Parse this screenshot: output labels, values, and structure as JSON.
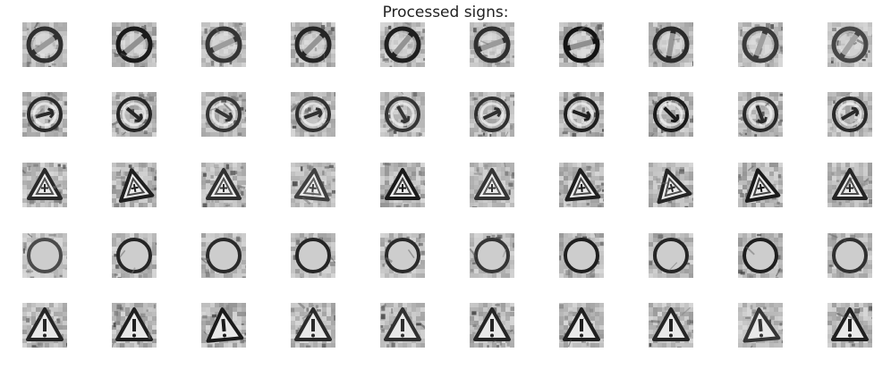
{
  "figure": {
    "title": "Processed signs:"
  },
  "grid": {
    "rows": [
      {
        "name": "circle-slash",
        "symbol": "circle-slash",
        "variants": [
          {
            "angle": 55,
            "contrast": 0.75
          },
          {
            "angle": 50,
            "contrast": 0.95
          },
          {
            "angle": 65,
            "contrast": 0.7
          },
          {
            "angle": 45,
            "contrast": 0.85
          },
          {
            "angle": 40,
            "contrast": 0.9
          },
          {
            "angle": 70,
            "contrast": 0.75
          },
          {
            "angle": 75,
            "contrast": 1.0
          },
          {
            "angle": 10,
            "contrast": 0.8
          },
          {
            "angle": 20,
            "contrast": 0.65
          },
          {
            "angle": 35,
            "contrast": 0.55
          }
        ]
      },
      {
        "name": "circle-arrow",
        "symbol": "circle-arrow",
        "variants": [
          {
            "angle": -15,
            "contrast": 0.8
          },
          {
            "angle": 40,
            "contrast": 0.85
          },
          {
            "angle": 30,
            "contrast": 0.7
          },
          {
            "angle": -20,
            "contrast": 0.75
          },
          {
            "angle": 60,
            "contrast": 0.7
          },
          {
            "angle": -25,
            "contrast": 0.75
          },
          {
            "angle": 20,
            "contrast": 0.9
          },
          {
            "angle": 45,
            "contrast": 0.95
          },
          {
            "angle": 70,
            "contrast": 0.8
          },
          {
            "angle": -30,
            "contrast": 0.8
          }
        ]
      },
      {
        "name": "triangle-snowflake",
        "symbol": "triangle-snow",
        "variants": [
          {
            "angle": 0,
            "contrast": 0.8
          },
          {
            "angle": -10,
            "contrast": 0.9
          },
          {
            "angle": 0,
            "contrast": 0.75
          },
          {
            "angle": 5,
            "contrast": 0.6
          },
          {
            "angle": 0,
            "contrast": 0.95
          },
          {
            "angle": 0,
            "contrast": 0.7
          },
          {
            "angle": -5,
            "contrast": 0.9
          },
          {
            "angle": -15,
            "contrast": 0.85
          },
          {
            "angle": -10,
            "contrast": 0.95
          },
          {
            "angle": 0,
            "contrast": 0.85
          }
        ]
      },
      {
        "name": "circle-bar",
        "symbol": "circle-bar",
        "variants": [
          {
            "angle": 0,
            "contrast": 0.5
          },
          {
            "angle": 0,
            "contrast": 0.85
          },
          {
            "angle": 0,
            "contrast": 0.8
          },
          {
            "angle": 0,
            "contrast": 0.85
          },
          {
            "angle": 0,
            "contrast": 0.8
          },
          {
            "angle": 15,
            "contrast": 0.7
          },
          {
            "angle": 0,
            "contrast": 0.9
          },
          {
            "angle": 0,
            "contrast": 0.85
          },
          {
            "angle": 0,
            "contrast": 0.9
          },
          {
            "angle": 25,
            "contrast": 0.75
          }
        ]
      },
      {
        "name": "triangle-exclamation",
        "symbol": "triangle-excl",
        "variants": [
          {
            "angle": 0,
            "contrast": 0.85
          },
          {
            "angle": 0,
            "contrast": 0.9
          },
          {
            "angle": -5,
            "contrast": 0.95
          },
          {
            "angle": 0,
            "contrast": 0.8
          },
          {
            "angle": 0,
            "contrast": 0.75
          },
          {
            "angle": 0,
            "contrast": 0.85
          },
          {
            "angle": 0,
            "contrast": 0.9
          },
          {
            "angle": 0,
            "contrast": 0.85
          },
          {
            "angle": -5,
            "contrast": 0.7
          },
          {
            "angle": 0,
            "contrast": 0.9
          }
        ]
      }
    ]
  }
}
